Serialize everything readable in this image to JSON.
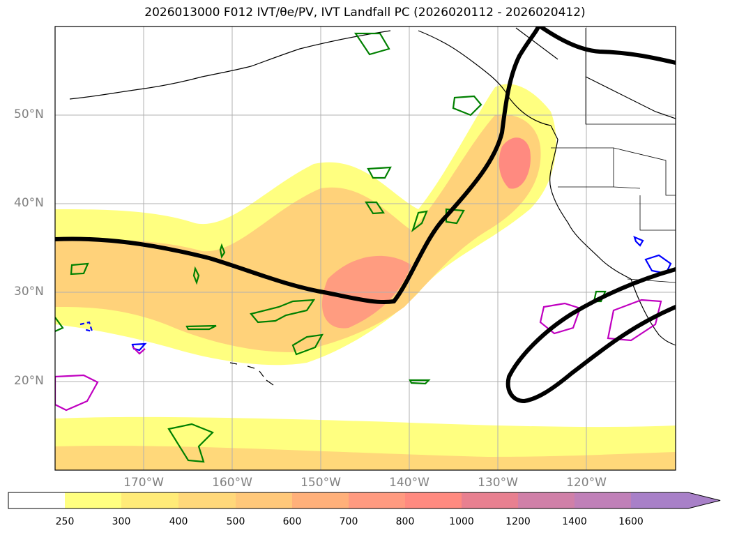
{
  "title": "2026013000 F012 IVT/θe/PV, IVT Landfall PC (2026020112 - 2026020412)",
  "map": {
    "latitude_labels": [
      "50°N",
      "40°N",
      "30°N",
      "20°N"
    ],
    "longitude_labels": [
      "170°W",
      "160°W",
      "150°W",
      "140°W",
      "130°W",
      "120°W"
    ],
    "colors": {
      "coastline": "#000000",
      "gridline": "#b0b0b0",
      "ivt_fill_low": "#ffff80",
      "ivt_fill_mid": "#ffd080",
      "ivt_fill_high": "#ff8a80",
      "pv_contour": "#008000",
      "theta_contour": "#0000ff",
      "magenta_contour": "#c000c0",
      "landfall_pc_line": "#000000"
    }
  },
  "colorbar": {
    "labels": [
      "250",
      "300",
      "400",
      "500",
      "600",
      "700",
      "800",
      "1000",
      "1200",
      "1400",
      "1600"
    ],
    "colors": [
      "#ffffff",
      "#ffff80",
      "#ffeb78",
      "#ffd87a",
      "#ffc87a",
      "#ffb07a",
      "#ff9a80",
      "#ff8a80",
      "#e88090",
      "#d080a8",
      "#c080b8",
      "#a880c8"
    ]
  }
}
